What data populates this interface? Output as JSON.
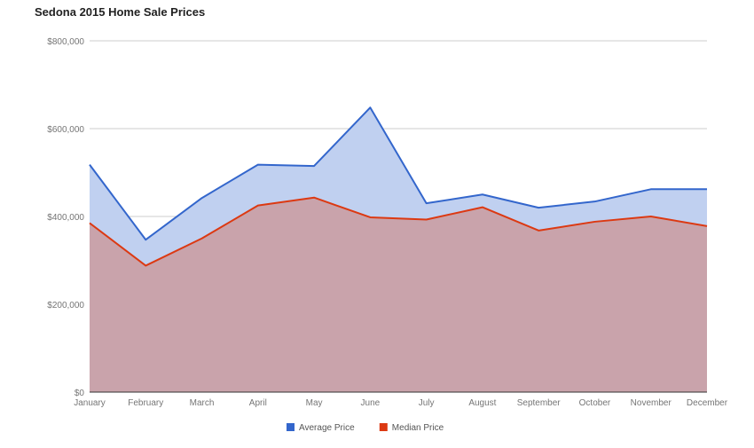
{
  "chart_data": {
    "type": "area",
    "title": "Sedona 2015 Home Sale Prices",
    "xlabel": "",
    "ylabel": "",
    "categories": [
      "January",
      "February",
      "March",
      "April",
      "May",
      "June",
      "July",
      "August",
      "September",
      "October",
      "November",
      "December"
    ],
    "ylim": [
      0,
      800000
    ],
    "yticks": [
      0,
      200000,
      400000,
      600000,
      800000
    ],
    "ytick_labels": [
      "$0",
      "$200,000",
      "$400,000",
      "$600,000",
      "$800,000"
    ],
    "grid": true,
    "legend_position": "bottom",
    "series": [
      {
        "name": "Average Price",
        "color": "#3366cc",
        "fill": "#c0d0f0",
        "values": [
          518000,
          347000,
          442000,
          518000,
          515000,
          648000,
          430000,
          450000,
          420000,
          434000,
          462000,
          462000
        ]
      },
      {
        "name": "Median Price",
        "color": "#dc3912",
        "fill": "#c9a3ab",
        "values": [
          385000,
          288000,
          350000,
          425000,
          443000,
          398000,
          393000,
          421000,
          368000,
          388000,
          400000,
          378000
        ]
      }
    ]
  }
}
